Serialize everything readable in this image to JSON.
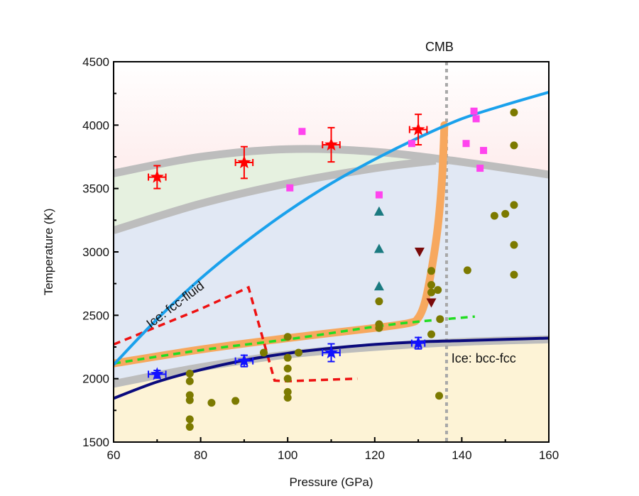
{
  "chart_data": {
    "type": "scatter",
    "title": "",
    "xlabel": "Pressure (GPa)",
    "ylabel": "Temperature (K)",
    "xlim": [
      60,
      160
    ],
    "ylim": [
      1500,
      4500
    ],
    "xticks": [
      60,
      80,
      100,
      120,
      140,
      160
    ],
    "yticks": [
      1500,
      2000,
      2500,
      3000,
      3500,
      4000,
      4500
    ],
    "grid": false,
    "legend": "none",
    "annotations": [
      {
        "text": "CMB",
        "x": 136.5,
        "y": 4600
      },
      {
        "text": "Ice: fcc-fluid",
        "x": 67,
        "y": 2600
      },
      {
        "text": "Ice: bcc-fcc",
        "x": 138,
        "y": 2180
      }
    ],
    "colors": {
      "fluid_region": "#fcc6c6",
      "green_region": "#e6f1e0",
      "blue_region": "#e1e8f4",
      "yellow_region": "#fdf3d6",
      "gray_band": "#bdbdbd",
      "fcc_fluid_line": "#1aa1ec",
      "bcc_fcc_line": "#0a0a7d",
      "orange_band": "#f7a85e",
      "green_dash": "#22dd22",
      "red_dash": "#ee1111",
      "cmb_line": "#a8a8a8",
      "red_star": "#ff0000",
      "blue_star": "#1111ff",
      "magenta_square": "#ff44ee",
      "teal_triangle": "#1a7a80",
      "maroon_triangle": "#7a0a0a",
      "olive_circle": "#7c7a00"
    },
    "series": [
      {
        "name": "red-stars",
        "marker": "star",
        "color": "#ff0000",
        "points": [
          [
            70,
            3590,
            2,
            90
          ],
          [
            90,
            3705,
            2,
            125
          ],
          [
            110,
            3845,
            2,
            135
          ],
          [
            130,
            3965,
            2,
            120
          ]
        ]
      },
      {
        "name": "blue-stars",
        "marker": "star",
        "color": "#1111ff",
        "points": [
          [
            70,
            2035,
            2,
            30
          ],
          [
            90,
            2140,
            2,
            45
          ],
          [
            110,
            2205,
            2,
            70
          ],
          [
            130,
            2280,
            1.5,
            45
          ]
        ]
      },
      {
        "name": "magenta-squares",
        "marker": "square",
        "color": "#ff44ee",
        "points": [
          [
            103.3,
            3950
          ],
          [
            100.5,
            3505
          ],
          [
            121,
            3450
          ],
          [
            128.5,
            3855
          ],
          [
            141,
            3855
          ],
          [
            142.8,
            4110
          ],
          [
            143.3,
            4050
          ],
          [
            144.2,
            3660
          ],
          [
            145,
            3800
          ]
        ]
      },
      {
        "name": "teal-triangles",
        "marker": "triangle-up",
        "color": "#1a7a80",
        "points": [
          [
            121,
            3320
          ],
          [
            121,
            3025
          ],
          [
            121,
            2730
          ]
        ]
      },
      {
        "name": "maroon-triangles",
        "marker": "triangle-down",
        "color": "#7a0a0a",
        "points": [
          [
            130.3,
            3000
          ],
          [
            133,
            2600
          ]
        ]
      },
      {
        "name": "olive-circles",
        "marker": "circle",
        "color": "#7c7a00",
        "points": [
          [
            77.5,
            2040
          ],
          [
            77.5,
            1980
          ],
          [
            77.5,
            1870
          ],
          [
            77.5,
            1830
          ],
          [
            77.5,
            1680
          ],
          [
            77.5,
            1620
          ],
          [
            82.5,
            1810
          ],
          [
            88,
            1825
          ],
          [
            94.5,
            2205
          ],
          [
            100,
            2330
          ],
          [
            100,
            2165
          ],
          [
            100,
            2080
          ],
          [
            100,
            2000
          ],
          [
            100,
            1895
          ],
          [
            100,
            1850
          ],
          [
            102.5,
            2205
          ],
          [
            121,
            2610
          ],
          [
            121,
            2430
          ],
          [
            121,
            2400
          ],
          [
            133,
            2850
          ],
          [
            133,
            2740
          ],
          [
            133,
            2680
          ],
          [
            134.5,
            2700
          ],
          [
            133,
            2350
          ],
          [
            135,
            2470
          ],
          [
            134.8,
            1865
          ],
          [
            141.3,
            2855
          ],
          [
            147.5,
            3285
          ],
          [
            150,
            3300
          ],
          [
            152,
            3370
          ],
          [
            152,
            3055
          ],
          [
            152,
            2820
          ],
          [
            152,
            3840
          ],
          [
            152,
            4100
          ]
        ]
      }
    ],
    "lines": [
      {
        "name": "fcc-fluid",
        "color": "#1aa1ec",
        "points": [
          [
            60,
            2110
          ],
          [
            70,
            2470
          ],
          [
            80,
            2790
          ],
          [
            90,
            3070
          ],
          [
            100,
            3320
          ],
          [
            110,
            3540
          ],
          [
            120,
            3730
          ],
          [
            130,
            3900
          ],
          [
            140,
            4050
          ],
          [
            150,
            4160
          ],
          [
            160,
            4260
          ]
        ]
      },
      {
        "name": "bcc-fcc",
        "color": "#0a0a7d",
        "points": [
          [
            60,
            1845
          ],
          [
            70,
            1975
          ],
          [
            80,
            2070
          ],
          [
            90,
            2145
          ],
          [
            100,
            2200
          ],
          [
            110,
            2240
          ],
          [
            120,
            2270
          ],
          [
            130,
            2290
          ],
          [
            140,
            2300
          ],
          [
            150,
            2310
          ],
          [
            160,
            2320
          ]
        ]
      },
      {
        "name": "orange-band",
        "color": "#f7a85e",
        "points": [
          [
            60,
            2120
          ],
          [
            80,
            2230
          ],
          [
            100,
            2320
          ],
          [
            120,
            2400
          ],
          [
            128,
            2440
          ],
          [
            130,
            2480
          ],
          [
            131.5,
            2600
          ],
          [
            133,
            2850
          ],
          [
            134.5,
            3200
          ],
          [
            135.5,
            3600
          ],
          [
            136,
            4000
          ]
        ]
      },
      {
        "name": "green-dashed",
        "color": "#22dd22",
        "points": [
          [
            60,
            2120
          ],
          [
            80,
            2225
          ],
          [
            100,
            2310
          ],
          [
            120,
            2410
          ],
          [
            130,
            2450
          ],
          [
            143,
            2490
          ]
        ]
      },
      {
        "name": "red-dashed",
        "color": "#ee1111",
        "points": [
          [
            60,
            2270
          ],
          [
            80,
            2550
          ],
          [
            91,
            2720
          ],
          [
            97,
            1985
          ],
          [
            100,
            1980
          ],
          [
            116,
            2000
          ]
        ]
      },
      {
        "name": "gray-band-upper",
        "color": "#bdbdbd",
        "points": [
          [
            60,
            3620
          ],
          [
            80,
            3750
          ],
          [
            100,
            3810
          ],
          [
            120,
            3790
          ],
          [
            140,
            3710
          ],
          [
            160,
            3610
          ]
        ]
      },
      {
        "name": "gray-band-lower",
        "color": "#bdbdbd",
        "points": [
          [
            60,
            3170
          ],
          [
            80,
            3380
          ],
          [
            100,
            3540
          ],
          [
            120,
            3660
          ],
          [
            134,
            3720
          ]
        ]
      },
      {
        "name": "gray-band-bottom",
        "color": "#bdbdbd",
        "points": [
          [
            60,
            1960
          ],
          [
            80,
            2090
          ],
          [
            100,
            2190
          ],
          [
            120,
            2250
          ],
          [
            140,
            2290
          ],
          [
            160,
            2310
          ]
        ]
      },
      {
        "name": "cmb",
        "color": "#a8a8a8",
        "points": [
          [
            136.5,
            1500
          ],
          [
            136.5,
            4500
          ]
        ]
      }
    ]
  }
}
